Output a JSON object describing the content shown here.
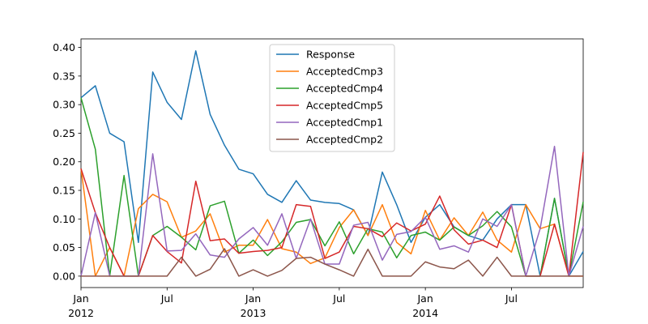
{
  "chart_data": {
    "type": "line",
    "xlabel": "",
    "ylabel": "",
    "xlim": [
      "2012-01",
      "2014-12"
    ],
    "ylim": [
      -0.02,
      0.415
    ],
    "yticks": [
      0.0,
      0.05,
      0.1,
      0.15,
      0.2,
      0.25,
      0.3,
      0.35,
      0.4
    ],
    "ytick_labels": [
      "0.00",
      "0.05",
      "0.10",
      "0.15",
      "0.20",
      "0.25",
      "0.30",
      "0.35",
      "0.40"
    ],
    "xticks": [
      {
        "x": "2012-01",
        "label": "Jan",
        "sublabel": "2012"
      },
      {
        "x": "2012-07",
        "label": "Jul",
        "sublabel": ""
      },
      {
        "x": "2013-01",
        "label": "Jan",
        "sublabel": "2013"
      },
      {
        "x": "2013-07",
        "label": "Jul",
        "sublabel": ""
      },
      {
        "x": "2014-01",
        "label": "Jan",
        "sublabel": "2014"
      },
      {
        "x": "2014-07",
        "label": "Jul",
        "sublabel": ""
      }
    ],
    "x": [
      "2012-01",
      "2012-02",
      "2012-03",
      "2012-04",
      "2012-05",
      "2012-06",
      "2012-07",
      "2012-08",
      "2012-09",
      "2012-10",
      "2012-11",
      "2012-12",
      "2013-01",
      "2013-02",
      "2013-03",
      "2013-04",
      "2013-05",
      "2013-06",
      "2013-07",
      "2013-08",
      "2013-09",
      "2013-10",
      "2013-11",
      "2013-12",
      "2014-01",
      "2014-02",
      "2014-03",
      "2014-04",
      "2014-05",
      "2014-06",
      "2014-07",
      "2014-08",
      "2014-09",
      "2014-10",
      "2014-11",
      "2014-12"
    ],
    "grid": false,
    "legend_position": "upper-center",
    "series": [
      {
        "name": "Response",
        "color": "#1f77b4",
        "values": [
          0.312,
          0.333,
          0.25,
          0.235,
          0.059,
          0.357,
          0.304,
          0.274,
          0.394,
          0.283,
          0.229,
          0.187,
          0.179,
          0.143,
          0.129,
          0.167,
          0.133,
          0.129,
          0.127,
          0.116,
          0.071,
          0.182,
          0.125,
          0.059,
          0.103,
          0.125,
          0.086,
          0.071,
          0.063,
          0.1,
          0.125,
          0.125,
          0.0,
          0.136,
          0.0,
          0.043
        ]
      },
      {
        "name": "AcceptedCmp3",
        "color": "#ff7f0e",
        "values": [
          0.188,
          0.0,
          0.05,
          0.0,
          0.118,
          0.143,
          0.13,
          0.068,
          0.079,
          0.109,
          0.042,
          0.054,
          0.054,
          0.099,
          0.048,
          0.042,
          0.022,
          0.032,
          0.085,
          0.116,
          0.071,
          0.125,
          0.059,
          0.039,
          0.115,
          0.063,
          0.102,
          0.071,
          0.112,
          0.063,
          0.042,
          0.125,
          0.083,
          0.091,
          0.0,
          0.0
        ]
      },
      {
        "name": "AcceptedCmp4",
        "color": "#2ca02c",
        "values": [
          0.312,
          0.222,
          0.0,
          0.176,
          0.0,
          0.071,
          0.087,
          0.068,
          0.046,
          0.123,
          0.131,
          0.04,
          0.063,
          0.036,
          0.06,
          0.094,
          0.099,
          0.053,
          0.095,
          0.039,
          0.083,
          0.077,
          0.032,
          0.071,
          0.077,
          0.063,
          0.086,
          0.071,
          0.088,
          0.113,
          0.086,
          0.0,
          0.0,
          0.136,
          0.0,
          0.13
        ]
      },
      {
        "name": "AcceptedCmp5",
        "color": "#d62728",
        "values": [
          0.188,
          0.111,
          0.05,
          0.0,
          0.0,
          0.071,
          0.043,
          0.023,
          0.166,
          0.062,
          0.065,
          0.04,
          0.043,
          0.045,
          0.05,
          0.125,
          0.122,
          0.031,
          0.042,
          0.087,
          0.083,
          0.069,
          0.093,
          0.079,
          0.091,
          0.14,
          0.081,
          0.056,
          0.063,
          0.05,
          0.125,
          0.0,
          0.0,
          0.091,
          0.0,
          0.217
        ]
      },
      {
        "name": "AcceptedCmp1",
        "color": "#9467bd",
        "values": [
          0.0,
          0.111,
          0.0,
          0.0,
          0.0,
          0.214,
          0.044,
          0.045,
          0.074,
          0.037,
          0.033,
          0.065,
          0.085,
          0.054,
          0.109,
          0.031,
          0.1,
          0.021,
          0.021,
          0.089,
          0.094,
          0.028,
          0.073,
          0.078,
          0.103,
          0.047,
          0.053,
          0.042,
          0.1,
          0.087,
          0.125,
          0.0,
          0.083,
          0.227,
          0.0,
          0.087
        ]
      },
      {
        "name": "AcceptedCmp2",
        "color": "#8c564b",
        "values": [
          0.0,
          0.0,
          0.0,
          0.0,
          0.0,
          0.0,
          0.0,
          0.033,
          0.0,
          0.012,
          0.048,
          0.0,
          0.011,
          0.0,
          0.01,
          0.031,
          0.033,
          0.021,
          0.011,
          0.0,
          0.047,
          0.0,
          0.0,
          0.0,
          0.025,
          0.016,
          0.013,
          0.028,
          0.0,
          0.033,
          0.0,
          0.0,
          0.0,
          0.0,
          0.0,
          0.0
        ]
      }
    ]
  }
}
